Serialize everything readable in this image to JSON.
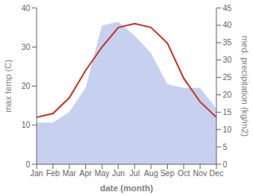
{
  "chart_data": {
    "type": "line",
    "xlabel": "date (month)",
    "ylabel": "max temp (C)",
    "y2label": "med. precipitation (kg/m2)",
    "categories": [
      "Jan",
      "Feb",
      "Mar",
      "Apr",
      "May",
      "Jun",
      "Jul",
      "Aug",
      "Sep",
      "Oct",
      "Nov",
      "Dec"
    ],
    "series": [
      {
        "type": "area",
        "axis": "y2",
        "color": "#c8d0f0",
        "values": [
          12,
          12,
          15,
          22,
          40,
          41,
          37,
          32,
          23,
          22,
          22,
          16
        ]
      },
      {
        "type": "line",
        "color": "#c0392b",
        "values": [
          12,
          13,
          17,
          24,
          30,
          35,
          36,
          35,
          31,
          22,
          16,
          12
        ]
      }
    ],
    "ylim": [
      0,
      40
    ],
    "yticks": [
      0,
      10,
      20,
      30,
      40
    ],
    "y2lim": [
      0,
      45
    ],
    "y2ticks": [
      0,
      5,
      10,
      15,
      20,
      25,
      30,
      35,
      40,
      45
    ]
  }
}
